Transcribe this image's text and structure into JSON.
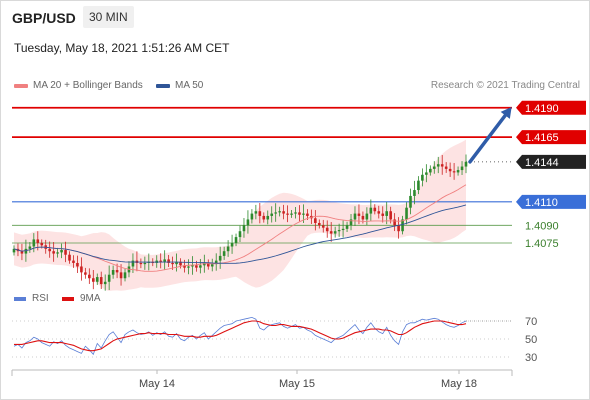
{
  "header": {
    "symbol": "GBP/USD",
    "timeframe": "30 MIN",
    "datetime": "Tuesday, May 18, 2021 1:51:26 AM CET"
  },
  "legend": {
    "ma20_label": "MA 20 + Bollinger Bands",
    "ma50_label": "MA 50",
    "credit": "Research © 2021 Trading Central"
  },
  "rsi_legend": {
    "rsi_label": "RSI",
    "ma9_label": "9MA"
  },
  "colors": {
    "resistance": "#e00000",
    "support_blue": "#3a6fd8",
    "support_green": "#5a9a4a",
    "ma20": "#f08080",
    "ma50": "#2f5597",
    "arrow": "#2f5ca8",
    "bands": "#fde3e3",
    "candle_up": "#2d8a2d",
    "candle_down": "#cc2222",
    "rsi": "#5b7fd6",
    "rsi_ma": "#dd1111"
  },
  "chart_data": [
    {
      "type": "candlestick",
      "title": "GBP/USD 30 MIN",
      "x_ticks": [
        "May 14",
        "May 15",
        "May 18"
      ],
      "ylim": [
        1.4035,
        1.42
      ],
      "levels": [
        {
          "value": 1.419,
          "label": "1.4190",
          "kind": "resistance"
        },
        {
          "value": 1.4165,
          "label": "1.4165",
          "kind": "resistance"
        },
        {
          "value": 1.4144,
          "label": "1.4144",
          "kind": "last"
        },
        {
          "value": 1.411,
          "label": "1.4110",
          "kind": "support"
        },
        {
          "value": 1.409,
          "label": "1.4090",
          "kind": "support-minor"
        },
        {
          "value": 1.4075,
          "label": "1.4075",
          "kind": "support-minor"
        }
      ],
      "close_series": [
        1.407,
        1.4068,
        1.4066,
        1.407,
        1.4072,
        1.4078,
        1.4075,
        1.4073,
        1.407,
        1.4068,
        1.4066,
        1.4067,
        1.4069,
        1.4065,
        1.406,
        1.4058,
        1.4055,
        1.405,
        1.4048,
        1.4045,
        1.4042,
        1.4046,
        1.404,
        1.4042,
        1.4048,
        1.4052,
        1.405,
        1.4045,
        1.405,
        1.4055,
        1.406,
        1.4058,
        1.4057,
        1.4058,
        1.4059,
        1.4058,
        1.406,
        1.4059,
        1.4061,
        1.4058,
        1.4057,
        1.4059,
        1.4056,
        1.4054,
        1.4055,
        1.4056,
        1.4054,
        1.4056,
        1.4058,
        1.4055,
        1.4057,
        1.406,
        1.4064,
        1.4068,
        1.4072,
        1.4075,
        1.408,
        1.4085,
        1.409,
        1.4095,
        1.41,
        1.4102,
        1.4098,
        1.4095,
        1.4098,
        1.41,
        1.4101,
        1.4102,
        1.41,
        1.4099,
        1.41,
        1.4101,
        1.4099,
        1.41,
        1.4098,
        1.4096,
        1.4092,
        1.409,
        1.4088,
        1.4085,
        1.4083,
        1.4085,
        1.4086,
        1.4087,
        1.409,
        1.4095,
        1.41,
        1.4098,
        1.4095,
        1.41,
        1.4105,
        1.4102,
        1.41,
        1.4098,
        1.4102,
        1.4095,
        1.409,
        1.4085,
        1.4095,
        1.4105,
        1.4115,
        1.412,
        1.4128,
        1.4133,
        1.4135,
        1.4138,
        1.414,
        1.4142,
        1.414,
        1.4138,
        1.4136,
        1.4135,
        1.4137,
        1.414,
        1.4144
      ],
      "ma20_note": "MA 20 + Bollinger Bands",
      "ma50_note": "MA 50",
      "forecast_arrow_target": 1.419
    },
    {
      "type": "line",
      "title": "RSI",
      "y_ticks": [
        70,
        50,
        30
      ],
      "ylim": [
        20,
        80
      ],
      "series": [
        {
          "name": "RSI",
          "values": [
            42,
            44,
            40,
            46,
            48,
            52,
            50,
            46,
            44,
            42,
            47,
            45,
            48,
            43,
            40,
            38,
            36,
            34,
            42,
            38,
            33,
            45,
            40,
            48,
            55,
            58,
            52,
            46,
            55,
            58,
            60,
            57,
            55,
            56,
            58,
            54,
            57,
            55,
            58,
            53,
            52,
            56,
            50,
            48,
            52,
            54,
            50,
            54,
            57,
            50,
            54,
            58,
            62,
            65,
            66,
            67,
            70,
            71,
            72,
            73,
            74,
            72,
            62,
            60,
            64,
            66,
            67,
            68,
            64,
            62,
            64,
            66,
            62,
            63,
            60,
            58,
            54,
            52,
            50,
            48,
            46,
            50,
            52,
            54,
            58,
            62,
            66,
            60,
            56,
            63,
            68,
            62,
            58,
            56,
            63,
            54,
            48,
            44,
            58,
            66,
            68,
            68,
            70,
            72,
            71,
            72,
            73,
            72,
            69,
            66,
            64,
            63,
            65,
            68,
            70
          ]
        },
        {
          "name": "9MA",
          "values": [
            44,
            44,
            44,
            45,
            46,
            47,
            48,
            48,
            47,
            46,
            46,
            46,
            46,
            45,
            44,
            43,
            41,
            39,
            38,
            37,
            37,
            38,
            39,
            42,
            45,
            48,
            50,
            51,
            52,
            53,
            54,
            55,
            56,
            56,
            57,
            56,
            56,
            56,
            56,
            55,
            55,
            55,
            54,
            53,
            53,
            53,
            52,
            52,
            53,
            53,
            53,
            54,
            56,
            58,
            60,
            62,
            64,
            66,
            68,
            69,
            70,
            70,
            69,
            67,
            66,
            65,
            65,
            66,
            66,
            65,
            64,
            64,
            64,
            63,
            62,
            61,
            59,
            57,
            55,
            53,
            51,
            50,
            50,
            51,
            53,
            55,
            57,
            58,
            59,
            60,
            61,
            61,
            61,
            60,
            60,
            59,
            57,
            55,
            55,
            57,
            60,
            63,
            65,
            67,
            68,
            69,
            70,
            70,
            70,
            69,
            68,
            67,
            66,
            66,
            67
          ]
        }
      ]
    }
  ]
}
